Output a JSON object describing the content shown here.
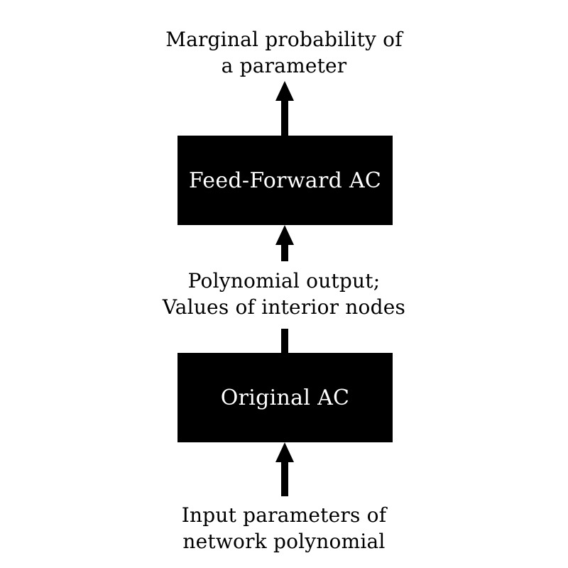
{
  "top_label": {
    "line1": "Marginal probability of",
    "line2": "a parameter"
  },
  "feed_forward_box": {
    "label": "Feed-Forward AC"
  },
  "middle_label": {
    "line1": "Polynomial output;",
    "line2": "Values of interior nodes"
  },
  "original_box": {
    "label": "Original AC"
  },
  "bottom_label": {
    "line1": "Input parameters of",
    "line2": "network polynomial"
  },
  "colors": {
    "box_fill": "#000000",
    "box_text": "#ffffff",
    "arrow": "#000000",
    "background": "#ffffff"
  }
}
